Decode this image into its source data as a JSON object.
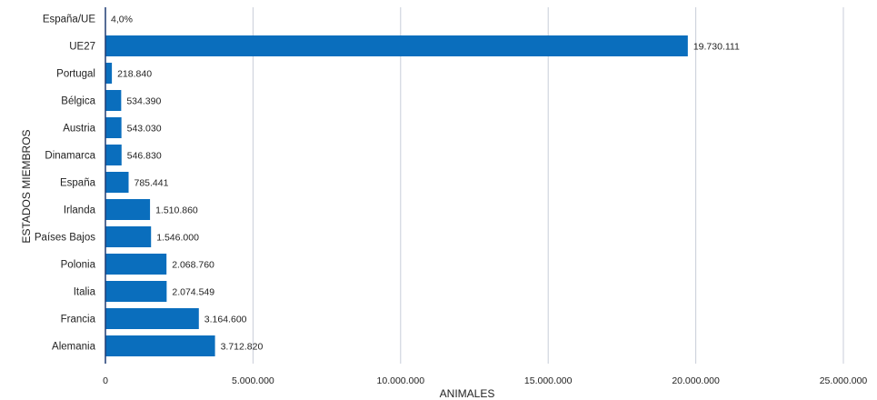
{
  "chart_data": {
    "type": "bar",
    "orientation": "horizontal",
    "xlabel": "ANIMALES",
    "ylabel": "ESTADOS MIEMBROS",
    "xlim": [
      0,
      25000000
    ],
    "grid": true,
    "colors": {
      "bar": "#0a6ebd",
      "grid": "#c8cdd8",
      "axis": "#1f3b73"
    },
    "x_ticks": [
      {
        "value": 0,
        "label": "0"
      },
      {
        "value": 5000000,
        "label": "5.000.000"
      },
      {
        "value": 10000000,
        "label": "10.000.000"
      },
      {
        "value": 15000000,
        "label": "15.000.000"
      },
      {
        "value": 20000000,
        "label": "20.000.000"
      },
      {
        "value": 25000000,
        "label": "25.000.000"
      }
    ],
    "categories": [
      "España/UE",
      "UE27",
      "Portugal",
      "Bélgica",
      "Austria",
      "Dinamarca",
      "España",
      "Irlanda",
      "Países Bajos",
      "Polonia",
      "Italia",
      "Francia",
      "Alemania"
    ],
    "values": [
      null,
      19730111,
      218840,
      534390,
      543030,
      546830,
      785441,
      1510860,
      1546000,
      2068760,
      2074549,
      3164600,
      3712820
    ],
    "value_labels": [
      "4,0%",
      "19.730.111",
      "218.840",
      "534.390",
      "543.030",
      "546.830",
      "785.441",
      "1.510.860",
      "1.546.000",
      "2.068.760",
      "2.074.549",
      "3.164.600",
      "3.712.820"
    ]
  }
}
